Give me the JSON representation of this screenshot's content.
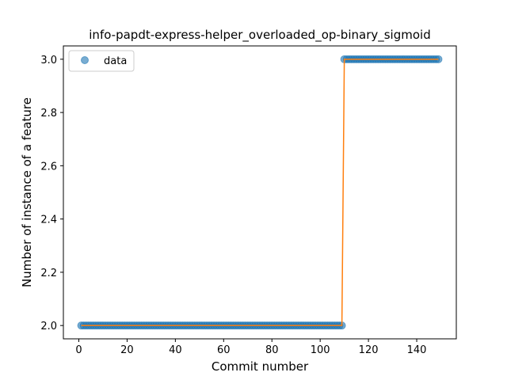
{
  "chart_data": {
    "type": "scatter",
    "title": "info-papdt-express-helper_overloaded_op-binary_sigmoid",
    "xlabel": "Commit number",
    "ylabel": "Number of instance of a feature",
    "xlim": [
      -6.4,
      156.4
    ],
    "ylim": [
      1.95,
      3.05
    ],
    "xticks": [
      0,
      20,
      40,
      60,
      80,
      100,
      120,
      140
    ],
    "yticks": [
      2.0,
      2.2,
      2.4,
      2.6,
      2.8,
      3.0
    ],
    "ytick_labels": [
      "2.0",
      "2.2",
      "2.4",
      "2.6",
      "2.8",
      "3.0"
    ],
    "grid": false,
    "legend": {
      "position": "top-left",
      "entries": [
        "data"
      ]
    },
    "series": [
      {
        "name": "data",
        "style": "markers",
        "color": "#1f77b4",
        "segments": [
          {
            "x_start": 1,
            "x_end": 109,
            "y": 2
          },
          {
            "x_start": 110,
            "x_end": 149,
            "y": 3
          }
        ]
      },
      {
        "style": "line",
        "color": "#ff7f0e",
        "points": [
          [
            1,
            2
          ],
          [
            109,
            2
          ],
          [
            110,
            3
          ],
          [
            149,
            3
          ]
        ]
      }
    ]
  }
}
